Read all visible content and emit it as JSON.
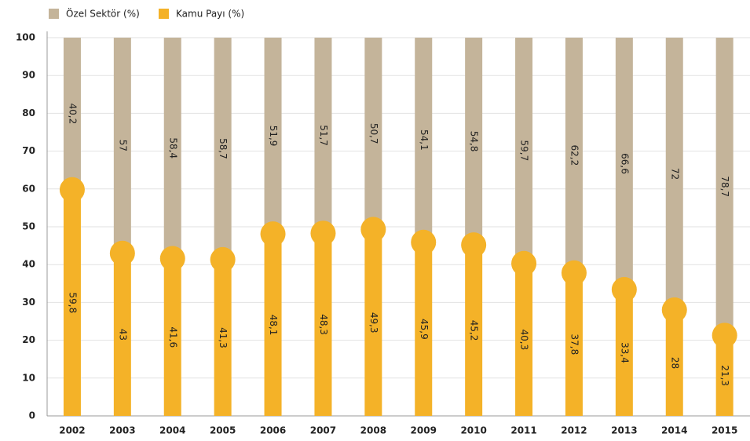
{
  "chart_data": {
    "type": "stacked_bar",
    "categories": [
      "2002",
      "2003",
      "2004",
      "2005",
      "2006",
      "2007",
      "2008",
      "2009",
      "2010",
      "2011",
      "2012",
      "2013",
      "2014",
      "2015"
    ],
    "series": [
      {
        "name": "Kamu Payı (%)",
        "color": "#f4b228",
        "values": [
          59.8,
          43,
          41.6,
          41.3,
          48.1,
          48.3,
          49.3,
          45.9,
          45.2,
          40.3,
          37.8,
          33.4,
          28,
          21.3
        ],
        "value_labels": [
          "59,8",
          "43",
          "41,6",
          "41,3",
          "48,1",
          "48,3",
          "49,3",
          "45,9",
          "45,2",
          "40,3",
          "37,8",
          "33,4",
          "28",
          "21,3"
        ]
      },
      {
        "name": "Özel Sektör (%)",
        "color": "#c4b49a",
        "values": [
          40.2,
          57,
          58.4,
          58.7,
          51.9,
          51.7,
          50.7,
          54.1,
          54.8,
          59.7,
          62.2,
          66.6,
          72,
          78.7
        ],
        "value_labels": [
          "40,2",
          "57",
          "58,4",
          "58,7",
          "51,9",
          "51,7",
          "50,7",
          "54,1",
          "54,8",
          "59,7",
          "62,2",
          "66,6",
          "72",
          "78,7"
        ]
      }
    ],
    "ylim": [
      0,
      100
    ],
    "yticks": [
      0,
      10,
      20,
      30,
      40,
      50,
      60,
      70,
      80,
      90,
      100
    ],
    "grid": true
  }
}
